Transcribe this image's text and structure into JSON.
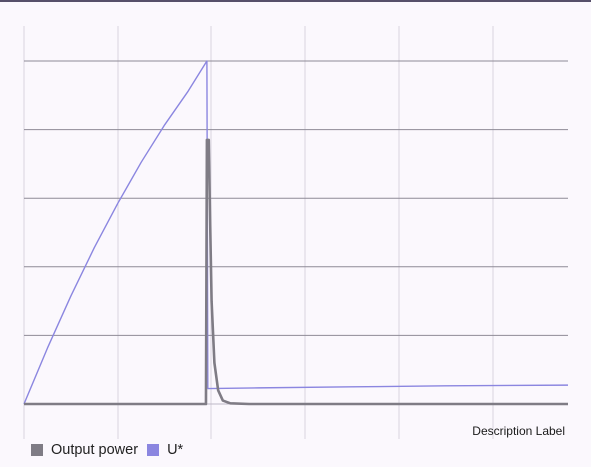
{
  "chart_data": {
    "type": "line",
    "title": "",
    "xlabel": "",
    "ylabel": "",
    "description": "Description Label",
    "grid": true,
    "axis_labels_visible": false,
    "legend_position": "bottom-left",
    "xlim": [
      0,
      5.8
    ],
    "ylim": [
      0,
      1
    ],
    "series": [
      {
        "name": "Output power",
        "color": "#7f7c85",
        "points": [
          [
            0,
            0
          ],
          [
            1.94,
            0
          ],
          [
            1.95,
            0.77
          ],
          [
            1.97,
            0.77
          ],
          [
            1.98,
            0.6
          ],
          [
            2.0,
            0.3
          ],
          [
            2.03,
            0.12
          ],
          [
            2.07,
            0.04
          ],
          [
            2.12,
            0.01
          ],
          [
            2.2,
            0.002
          ],
          [
            2.4,
            0
          ],
          [
            5.8,
            0
          ]
        ]
      },
      {
        "name": "U*",
        "color": "#8b86e0",
        "points": [
          [
            0,
            0
          ],
          [
            0.25,
            0.163
          ],
          [
            0.5,
            0.315
          ],
          [
            0.75,
            0.456
          ],
          [
            1.0,
            0.585
          ],
          [
            1.25,
            0.705
          ],
          [
            1.5,
            0.814
          ],
          [
            1.75,
            0.912
          ],
          [
            1.95,
            1.0
          ],
          [
            1.96,
            0.045
          ],
          [
            2.5,
            0.047
          ],
          [
            3.5,
            0.05
          ],
          [
            4.5,
            0.053
          ],
          [
            5.8,
            0.055
          ]
        ]
      }
    ]
  }
}
